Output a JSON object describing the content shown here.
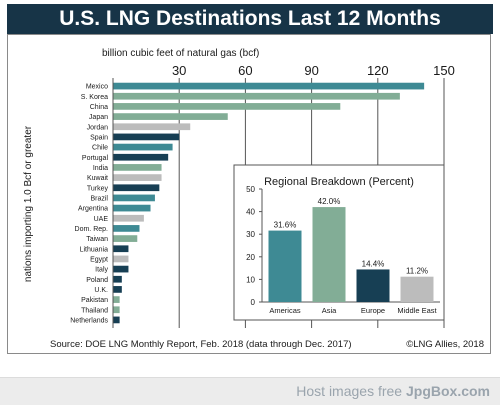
{
  "title": "U.S. LNG Destinations Last 12 Months",
  "source": "Source: DOE LNG Monthly Report, Feb. 2018 (data through Dec. 2017)",
  "copyright": "©LNG Allies, 2018",
  "watermark": {
    "prefix": "Host images free ",
    "brand": "JpgBox.com"
  },
  "colors": {
    "header": "#173447",
    "lightgreen": "#82ad96",
    "teal": "#3e8a94",
    "darkteal": "#173f54",
    "gray": "#bcbcbc"
  },
  "chart_data": [
    {
      "type": "bar",
      "orientation": "horizontal",
      "xlabel": "billion cubic feet of natural gas (bcf)",
      "ylabel": "nations importing 1.0 Bcf or greater",
      "xlim": [
        0,
        150
      ],
      "xticks": [
        "30",
        "60",
        "90",
        "120",
        "150"
      ],
      "grid": true,
      "categories": [
        "Mexico",
        "S. Korea",
        "China",
        "Japan",
        "Jordan",
        "Spain",
        "Chile",
        "Portugal",
        "India",
        "Kuwait",
        "Turkey",
        "Brazil",
        "Argentina",
        "UAE",
        "Dom. Rep.",
        "Taiwan",
        "Lithuania",
        "Egypt",
        "Italy",
        "Poland",
        "U.K.",
        "Pakistan",
        "Thailand",
        "Netherlands"
      ],
      "values": [
        141,
        130,
        103,
        52,
        35,
        30,
        27,
        25,
        22,
        22,
        21,
        19,
        17,
        14,
        12,
        11,
        7,
        7,
        7,
        4,
        4,
        3,
        3,
        3
      ],
      "bar_colors": [
        "teal",
        "lightgreen",
        "lightgreen",
        "lightgreen",
        "gray",
        "darkteal",
        "teal",
        "darkteal",
        "lightgreen",
        "gray",
        "darkteal",
        "teal",
        "teal",
        "gray",
        "teal",
        "lightgreen",
        "darkteal",
        "gray",
        "darkteal",
        "darkteal",
        "darkteal",
        "lightgreen",
        "lightgreen",
        "darkteal"
      ]
    },
    {
      "type": "bar",
      "title": "Regional Breakdown (Percent)",
      "categories": [
        "Americas",
        "Asia",
        "Europe",
        "Middle East"
      ],
      "values": [
        31.6,
        42.0,
        14.4,
        11.2
      ],
      "data_labels": [
        "31.6%",
        "42.0%",
        "14.4%",
        "11.2%"
      ],
      "bar_colors": [
        "teal",
        "lightgreen",
        "darkteal",
        "gray"
      ],
      "ylim": [
        0,
        50
      ],
      "yticks": [
        "0",
        "10",
        "20",
        "30",
        "40",
        "50"
      ]
    }
  ]
}
